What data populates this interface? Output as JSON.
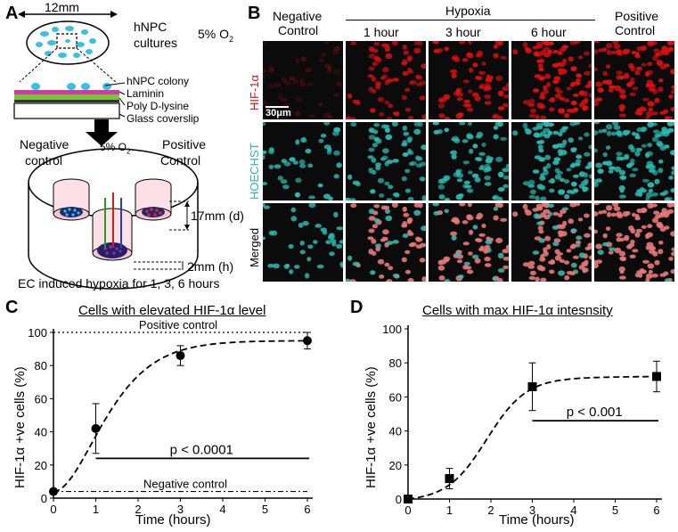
{
  "panelA": {
    "label": "A",
    "dish_width": "12mm",
    "cultures_label_1": "hNPC",
    "cultures_label_2": "cultures",
    "oxygen_label": "5% O",
    "oxygen_sub": "2",
    "layers": [
      "hNPC colony",
      "Laminin",
      "Poly D-lysine",
      "Glass coverslip"
    ],
    "negative_control_1": "Negative",
    "negative_control_2": "control",
    "positive_control_1": "Positive",
    "positive_control_2": "Control",
    "chamber_oxygen": "5% O",
    "chamber_oxygen_sub": "2",
    "depth_label": "17mm (d)",
    "height_label": "2mm (h)",
    "caption": "EC induced hypoxia for 1, 3, 6 hours"
  },
  "panelB": {
    "label": "B",
    "columns": {
      "negative_1": "Negative",
      "negative_2": "Control",
      "hypoxia": "Hypoxia",
      "h1": "1 hour",
      "h3": "3 hour",
      "h6": "6 hour",
      "positive_1": "Positive",
      "positive_2": "Control"
    },
    "rows": [
      "HIF-1α",
      "HOECHST",
      "Merged"
    ],
    "scale_bar": "30μm",
    "colors": {
      "hif": "#e01010",
      "hoechst": "#2ab8b0",
      "background": "#0b0b0b"
    }
  },
  "panelC": {
    "label": "C",
    "pvalue": "p < 0.0001",
    "positive_control": "Positive control",
    "negative_control": "Negative control",
    "chart_data": {
      "type": "line",
      "title": "Cells with elevated HIF-1α level",
      "xlabel": "Time (hours)",
      "ylabel": "HIF-1α +ve cells (%)",
      "xlim": [
        0,
        6
      ],
      "ylim": [
        0,
        100
      ],
      "xticks": [
        0,
        1,
        2,
        3,
        4,
        5,
        6
      ],
      "yticks": [
        0,
        20,
        40,
        60,
        80,
        100
      ],
      "marker": "circle",
      "x": [
        0,
        1,
        3,
        6
      ],
      "y": [
        4,
        42,
        86,
        95
      ],
      "err": [
        0,
        15,
        6,
        5
      ],
      "positive_control_level": 100,
      "negative_control_level": 4,
      "significance_bar": {
        "x_start": 1,
        "x_end": 6,
        "y": 24
      }
    }
  },
  "panelD": {
    "label": "D",
    "pvalue": "p < 0.001",
    "chart_data": {
      "type": "line",
      "title": "Cells with max HIF-1α intesnsity",
      "xlabel": "Time (hours)",
      "ylabel": "HIF-1α +ve cells (%)",
      "xlim": [
        0,
        6
      ],
      "ylim": [
        0,
        100
      ],
      "xticks": [
        0,
        1,
        2,
        3,
        4,
        5,
        6
      ],
      "yticks": [
        0,
        20,
        40,
        60,
        80,
        100
      ],
      "marker": "square",
      "x": [
        0,
        1,
        3,
        6
      ],
      "y": [
        0,
        12,
        66,
        72
      ],
      "err": [
        0,
        6,
        14,
        9
      ],
      "significance_bar": {
        "x_start": 3,
        "x_end": 6,
        "y": 46
      }
    }
  }
}
